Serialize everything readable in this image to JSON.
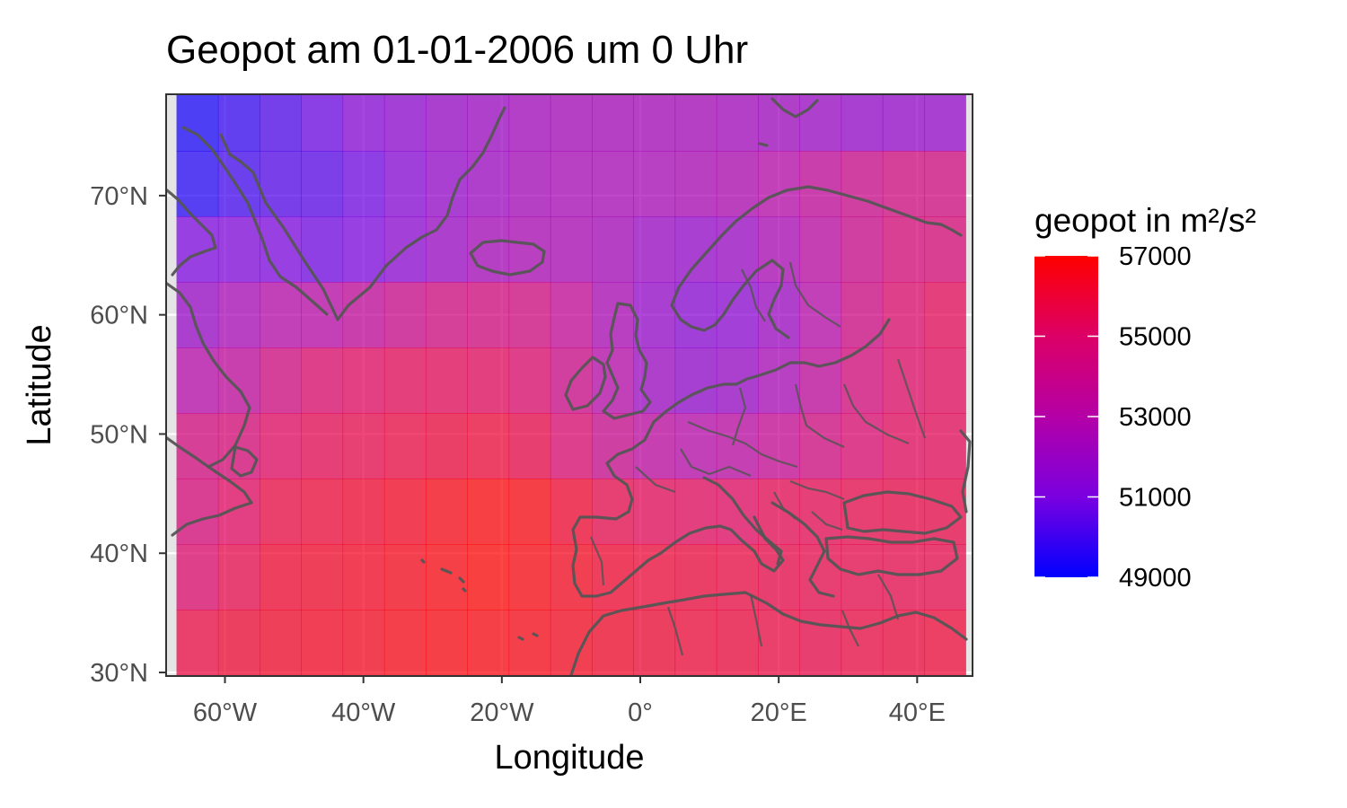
{
  "chart_data": {
    "type": "heatmap",
    "title": "Geopot am 01-01-2006 um 0 Uhr",
    "xlabel": "Longitude",
    "ylabel": "Latitude",
    "x_ticks": [
      {
        "value": -60,
        "label": "60°W"
      },
      {
        "value": -40,
        "label": "40°W"
      },
      {
        "value": -20,
        "label": "20°W"
      },
      {
        "value": 0,
        "label": "0°"
      },
      {
        "value": 20,
        "label": "20°E"
      },
      {
        "value": 40,
        "label": "40°E"
      }
    ],
    "y_ticks": [
      {
        "value": 30,
        "label": "30°N"
      },
      {
        "value": 40,
        "label": "40°N"
      },
      {
        "value": 50,
        "label": "50°N"
      },
      {
        "value": 60,
        "label": "60°N"
      },
      {
        "value": 70,
        "label": "70°N"
      }
    ],
    "xlim": [
      -68.5,
      48
    ],
    "ylim": [
      29.7,
      78.5
    ],
    "grid": true,
    "basemap": "coastlines and country borders",
    "legend": {
      "title": "geopot in m²/s²",
      "placement": "right",
      "ticks": [
        "57000",
        "55000",
        "53000",
        "51000",
        "49000"
      ],
      "tick_values": [
        57000,
        55000,
        53000,
        51000,
        49000
      ],
      "range": [
        49000,
        57000
      ],
      "color_low": "#0000ff",
      "color_high": "#ff0000"
    },
    "cell_longitudes": [
      -64,
      -58,
      -52,
      -46,
      -40,
      -34,
      -28,
      -22,
      -16,
      -10,
      -4,
      2,
      8,
      14,
      20,
      26,
      32,
      38,
      44
    ],
    "row_latitudes": [
      76.5,
      71,
      65.5,
      60,
      54.5,
      49,
      43.5,
      38,
      32.5
    ],
    "values": [
      [
        49300,
        49800,
        50200,
        50700,
        51300,
        51600,
        51900,
        52100,
        52300,
        52400,
        52400,
        52400,
        52400,
        52300,
        52200,
        52000,
        51800,
        51800,
        51800
      ],
      [
        49500,
        50000,
        50300,
        50400,
        50800,
        51300,
        51800,
        52100,
        52400,
        52500,
        52500,
        52500,
        52600,
        52700,
        53000,
        53500,
        54000,
        54300,
        54300
      ],
      [
        51000,
        51100,
        51000,
        50800,
        51000,
        51500,
        52000,
        52400,
        52600,
        52600,
        52400,
        52000,
        51800,
        52000,
        52600,
        53200,
        54000,
        54600,
        54700
      ],
      [
        51900,
        52500,
        53000,
        53100,
        53500,
        54000,
        54300,
        54400,
        54300,
        53600,
        52600,
        51800,
        51400,
        51500,
        52100,
        53000,
        54200,
        55000,
        55400
      ],
      [
        53000,
        53400,
        54300,
        55000,
        55200,
        55400,
        55400,
        55300,
        55000,
        54100,
        53000,
        52100,
        51700,
        51900,
        52500,
        53400,
        54500,
        55100,
        55300
      ],
      [
        54400,
        54700,
        55200,
        55500,
        55600,
        55800,
        55900,
        56000,
        55700,
        54900,
        53900,
        53300,
        53000,
        53200,
        53700,
        54300,
        54900,
        55300,
        55400
      ],
      [
        54600,
        55200,
        55800,
        56000,
        56200,
        56400,
        56700,
        56900,
        56800,
        56200,
        55600,
        55400,
        55300,
        55200,
        55500,
        55500,
        55600,
        55700,
        55700
      ],
      [
        55000,
        55600,
        56200,
        56300,
        56400,
        56600,
        56800,
        57000,
        56800,
        56500,
        56200,
        56000,
        55900,
        55800,
        55700,
        55600,
        55600,
        55600,
        55600
      ],
      [
        55800,
        56100,
        56300,
        56400,
        56500,
        56700,
        56800,
        56800,
        56700,
        56500,
        56300,
        56100,
        56000,
        55900,
        55800,
        55700,
        55800,
        55900,
        56000
      ]
    ]
  }
}
